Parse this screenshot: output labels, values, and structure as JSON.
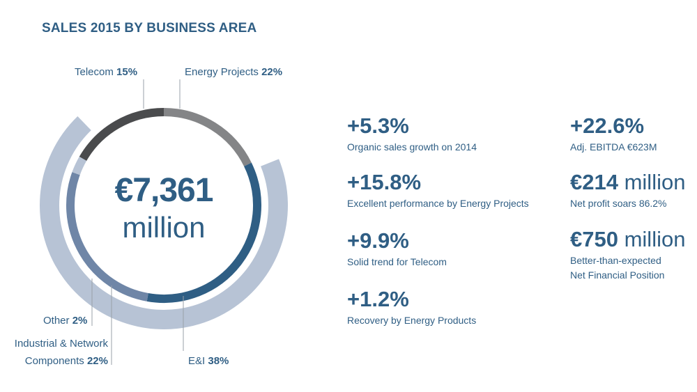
{
  "chart_data": {
    "type": "pie",
    "title": "SALES 2015 BY BUSINESS AREA",
    "total": {
      "value": "€7,361",
      "unit": "million"
    },
    "slices": [
      {
        "name": "Energy Projects",
        "value": 22,
        "label": "22%",
        "color": "#848587"
      },
      {
        "name": "E&I",
        "value": 38,
        "label": "38%",
        "color": "#2f5e84"
      },
      {
        "name": "Industrial & Network Components",
        "value": 22,
        "label": "22%",
        "color": "#b7c3d5"
      },
      {
        "name": "Other",
        "value": 2,
        "label": "2%",
        "color": "#b7c3d5"
      },
      {
        "name": "Telecom",
        "value": 15,
        "label": "15%",
        "color": "#6f86a7"
      }
    ],
    "segment_label_texts": {
      "telecom_name": "Telecom",
      "energy_projects_name": "Energy Projects",
      "other_name": "Other",
      "industrial_name_line1": "Industrial & Network",
      "industrial_name_line2": "Components",
      "ei_name": "E&I"
    }
  },
  "stats": [
    {
      "value": "+5.3%",
      "unit": "",
      "lines": [
        "Organic sales growth on 2014"
      ]
    },
    {
      "value": "+15.8%",
      "unit": "",
      "lines": [
        "Excellent performance by Energy Projects"
      ]
    },
    {
      "value": "+9.9%",
      "unit": "",
      "lines": [
        "Solid trend for Telecom"
      ]
    },
    {
      "value": "+1.2%",
      "unit": "",
      "lines": [
        "Recovery by Energy Products"
      ]
    },
    {
      "value": "+22.6%",
      "unit": "",
      "lines": [
        "Adj. EBITDA €623M"
      ]
    },
    {
      "value": "€214",
      "unit": "million",
      "lines": [
        "Net profit soars 86.2%"
      ]
    },
    {
      "value": "€750",
      "unit": "million",
      "lines": [
        "Better-than-expected",
        "Net Financial Position"
      ]
    }
  ],
  "colors": {
    "primary": "#2f5e84",
    "ring_dark": "#4a4b4d",
    "ring_grey": "#848587",
    "ring_light": "#b7c3d5",
    "ring_mid": "#6f86a7"
  }
}
